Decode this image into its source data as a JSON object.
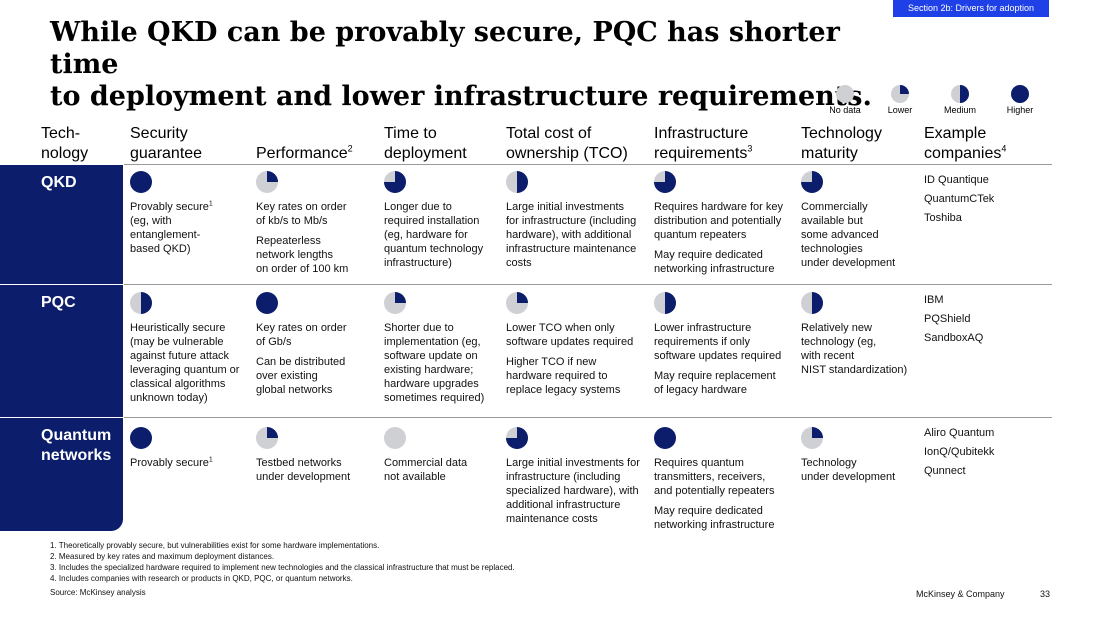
{
  "section_tag": "Section 2b: Drivers for adoption",
  "title": {
    "line1": "While QKD can be provably secure, PQC has shorter time",
    "line2": "to deployment and lower infrastructure requirements."
  },
  "legend": [
    {
      "label": "No data",
      "level": "none"
    },
    {
      "label": "Lower",
      "level": "low"
    },
    {
      "label": "Medium",
      "level": "medium"
    },
    {
      "label": "Higher",
      "level": "high"
    }
  ],
  "headers": {
    "technology": [
      "Tech-",
      "nology"
    ],
    "security": [
      "Security",
      "guarantee"
    ],
    "performance": "Performance",
    "performance_sup": "2",
    "time": [
      "Time to",
      "deployment"
    ],
    "tco": [
      "Total cost of",
      "ownership (TCO)"
    ],
    "infra": [
      "Infrastructure",
      "requirements"
    ],
    "infra_sup": "3",
    "maturity": [
      "Technology",
      "maturity"
    ],
    "companies": [
      "Example",
      "companies"
    ],
    "companies_sup": "4"
  },
  "rows": [
    {
      "name": "QKD",
      "security": {
        "level": "high",
        "lines": [
          "Provably secure",
          "(eg, with",
          "entanglement-",
          "based QKD)"
        ],
        "sup": "1"
      },
      "performance": {
        "level": "low",
        "p1": [
          "Key rates on order",
          "of kb/s to Mb/s"
        ],
        "p2": [
          "Repeaterless",
          "network lengths",
          "on order of 100 km"
        ]
      },
      "time": {
        "level": "high_minus",
        "p1": [
          "Longer due to",
          "required installation",
          "(eg, hardware for",
          "quantum technology",
          "infrastructure)"
        ]
      },
      "tco": {
        "level": "medium",
        "p1": [
          "Large initial investments",
          "for infrastructure (including",
          "hardware), with additional",
          "infrastructure maintenance",
          "costs"
        ]
      },
      "infra": {
        "level": "high_minus",
        "p1": [
          "Requires hardware for key",
          "distribution and potentially",
          "quantum repeaters"
        ],
        "p2": [
          "May require dedicated",
          "networking infrastructure"
        ]
      },
      "maturity": {
        "level": "high_minus",
        "p1": [
          "Commercially",
          "available but",
          "some advanced",
          "technologies",
          "under development"
        ]
      },
      "companies": [
        "ID Quantique",
        "QuantumCTek",
        "Toshiba"
      ]
    },
    {
      "name": "PQC",
      "security": {
        "level": "medium",
        "lines": [
          "Heuristically secure",
          "(may be vulnerable",
          "against future attack",
          "leveraging quantum or",
          "classical algorithms",
          "unknown today)"
        ]
      },
      "performance": {
        "level": "high",
        "p1": [
          "Key rates on order",
          "of Gb/s"
        ],
        "p2": [
          "Can be distributed",
          "over existing",
          "global networks"
        ]
      },
      "time": {
        "level": "low",
        "p1": [
          "Shorter due to",
          "implementation (eg,",
          "software update on",
          "existing hardware;",
          "hardware upgrades",
          "sometimes required)"
        ]
      },
      "tco": {
        "level": "low",
        "p1": [
          "Lower TCO when only",
          "software updates required"
        ],
        "p2": [
          "Higher TCO if new",
          "hardware required to",
          "replace legacy systems"
        ]
      },
      "infra": {
        "level": "medium",
        "p1": [
          "Lower infrastructure",
          "requirements if only",
          "software updates required"
        ],
        "p2": [
          "May require replacement",
          "of legacy hardware"
        ]
      },
      "maturity": {
        "level": "medium",
        "p1": [
          "Relatively new",
          "technology (eg,",
          "with recent",
          "NIST standardization)"
        ]
      },
      "companies": [
        "IBM",
        "PQShield",
        "SandboxAQ"
      ]
    },
    {
      "name_lines": [
        "Quantum",
        "networks"
      ],
      "security": {
        "level": "high",
        "lines": [
          "Provably secure"
        ],
        "sup": "1"
      },
      "performance": {
        "level": "low",
        "p1": [
          "Testbed networks",
          "under development"
        ]
      },
      "time": {
        "level": "none",
        "p1": [
          "Commercial data",
          "not available"
        ]
      },
      "tco": {
        "level": "high_minus",
        "p1": [
          "Large initial investments for",
          "infrastructure (including",
          "specialized hardware), with",
          "additional infrastructure",
          "maintenance costs"
        ]
      },
      "infra": {
        "level": "high",
        "p1": [
          "Requires quantum",
          "transmitters, receivers,",
          "and potentially repeaters"
        ],
        "p2": [
          "May require dedicated",
          "networking infrastructure"
        ]
      },
      "maturity": {
        "level": "low",
        "p1": [
          "Technology",
          "under development"
        ]
      },
      "companies": [
        "Aliro Quantum",
        "IonQ/Qubitekk",
        "Qunnect"
      ]
    }
  ],
  "footnotes": [
    "1. Theoretically provably secure, but vulnerabilities exist for some hardware implementations.",
    "2. Measured by key rates and maximum deployment distances.",
    "3. Includes the specialized hardware required to implement new technologies and the classical infrastructure that must be replaced.",
    "4. Includes companies with research or products in QKD, PQC, or quantum networks."
  ],
  "source": "Source: McKinsey analysis",
  "brand": "McKinsey & Company",
  "page_number": "33",
  "colors": {
    "navy": "#0b1d6b",
    "gray": "#cfd0d4",
    "accent": "#1f40e6"
  }
}
